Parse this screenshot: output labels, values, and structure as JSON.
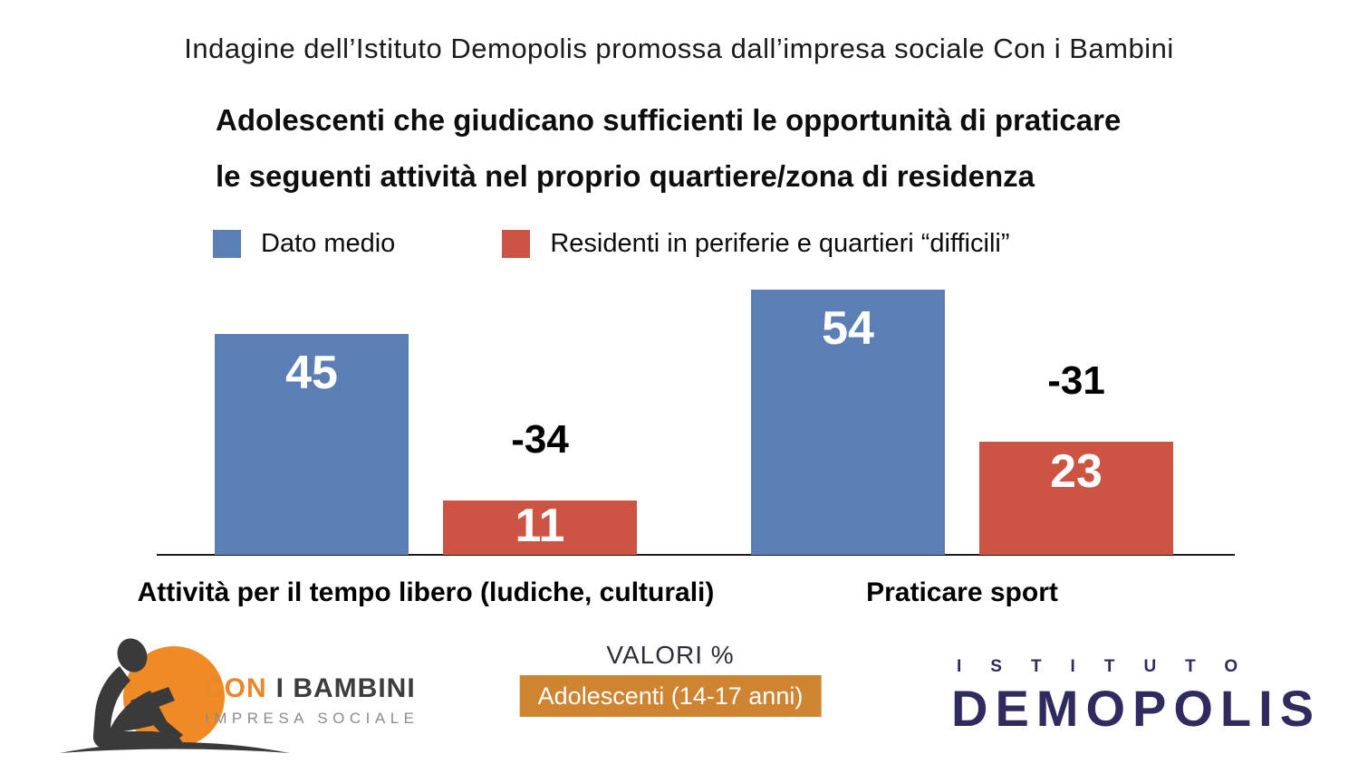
{
  "header": {
    "source_line": "Indagine dell’Istituto Demopolis promossa dall’impresa sociale Con i Bambini",
    "title_line1": "Adolescenti che giudicano sufficienti le opportunità di praticare",
    "title_line2": "le seguenti attività nel proprio quartiere/zona di residenza"
  },
  "legend": {
    "items": [
      {
        "label": "Dato medio",
        "color": "#5b7fb5"
      },
      {
        "label": "Residenti in periferie e quartieri “difficili”",
        "color": "#cd5342"
      }
    ]
  },
  "chart_data": {
    "type": "bar",
    "categories": [
      "Attività per il tempo libero (ludiche, culturali)",
      "Praticare sport"
    ],
    "series": [
      {
        "name": "Dato medio",
        "color": "#5b7fb5",
        "values": [
          45,
          54
        ]
      },
      {
        "name": "Residenti in periferie e quartieri “difficili”",
        "color": "#cd5342",
        "values": [
          11,
          23
        ]
      }
    ],
    "diff_labels": [
      "-34",
      "-31"
    ],
    "value_label_color": "#ffffff",
    "diff_label_color": "#000000",
    "ylim": [
      0,
      60
    ],
    "grid": false,
    "legend_position": "top"
  },
  "footer": {
    "note": "VALORI %",
    "badge": "Adolescenti (14-17 anni)",
    "badge_color": "#ce8430",
    "con_i_bambini": {
      "line1_accent": "CON",
      "line1_rest": "I BAMBINI",
      "line2": "IMPRESA SOCIALE",
      "circle_color": "#f08a24",
      "silhouette_color": "#3a3a3a"
    },
    "demopolis": {
      "top": "ISTITUTO",
      "bottom_pre": "DEM",
      "bottom_o": "O",
      "bottom_post": "POLIS",
      "brand_color": "#302b5e"
    }
  }
}
